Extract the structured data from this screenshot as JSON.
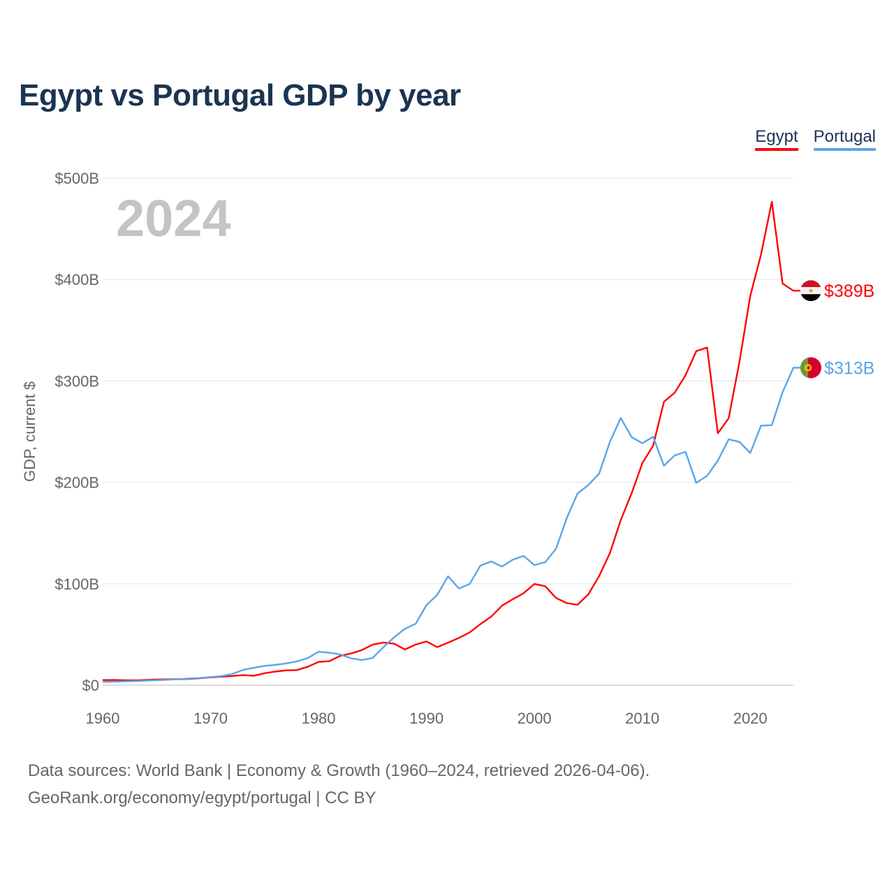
{
  "title": "Egypt vs Portugal GDP by year",
  "source_line1": "Data sources: World Bank | Economy & Growth (1960–2024, retrieved 2026-04-06).",
  "source_line2": "GeoRank.org/economy/egypt/portugal | CC BY",
  "chart_data": {
    "type": "line",
    "title": "Egypt vs Portugal GDP by year",
    "xlabel": "",
    "ylabel": "GDP, current $",
    "year_watermark": "2024",
    "xlim": [
      1960,
      2024
    ],
    "ylim": [
      0,
      500
    ],
    "unit": "billion USD",
    "x_ticks": [
      "1960",
      "1970",
      "1980",
      "1990",
      "2000",
      "2010",
      "2020"
    ],
    "y_ticks": [
      {
        "value": 0,
        "label": "$0"
      },
      {
        "value": 100,
        "label": "$100B"
      },
      {
        "value": 200,
        "label": "$200B"
      },
      {
        "value": 300,
        "label": "$300B"
      },
      {
        "value": 400,
        "label": "$400B"
      },
      {
        "value": 500,
        "label": "$500B"
      }
    ],
    "legend_position": "top-right",
    "grid": true,
    "series": [
      {
        "name": "Egypt",
        "color": "#ff0000",
        "end_label": "$389B",
        "flag": "egypt-flag",
        "values": [
          5,
          5.1,
          4.8,
          4.7,
          5.1,
          5.5,
          5.8,
          5.9,
          6.2,
          6.8,
          7.7,
          8.4,
          9.0,
          9.9,
          9.2,
          11.8,
          13.4,
          14.6,
          14.9,
          18.1,
          22.9,
          23.6,
          28.9,
          31.2,
          34.6,
          39.9,
          42,
          40.9,
          35.2,
          40,
          43.1,
          37.5,
          41.9,
          46.6,
          51.9,
          60.2,
          67.6,
          78.4,
          84.8,
          90.7,
          99.8,
          97.6,
          86,
          80.9,
          79.3,
          89.6,
          107.5,
          130.4,
          162.8,
          189,
          219,
          236,
          279.4,
          288.4,
          305.6,
          329.4,
          332.9,
          248.4,
          263.2,
          318.7,
          383.8,
          424.7,
          476.7,
          396,
          389
        ]
      },
      {
        "name": "Portugal",
        "color": "#5aa5ea",
        "end_label": "$313B",
        "flag": "portugal-flag",
        "values": [
          3.2,
          3.4,
          3.7,
          4.0,
          4.4,
          4.9,
          5.3,
          5.9,
          6.6,
          7.1,
          8.0,
          8.9,
          11.0,
          15.0,
          17.1,
          19.0,
          20.0,
          21.5,
          23.5,
          26.7,
          32.9,
          32.0,
          30.3,
          26.5,
          24.8,
          26.7,
          37.3,
          47.2,
          55.6,
          60.5,
          78.9,
          89.1,
          107.4,
          95.4,
          99.7,
          118,
          122,
          117,
          123.7,
          127.5,
          118.4,
          121.3,
          134.4,
          164.8,
          189,
          197.3,
          208.6,
          240,
          263.4,
          244.7,
          238.5,
          245,
          216.4,
          226.5,
          230,
          199.5,
          206.4,
          221.4,
          242.4,
          239.9,
          228.9,
          255.9,
          256.4,
          289,
          313
        ]
      }
    ]
  }
}
